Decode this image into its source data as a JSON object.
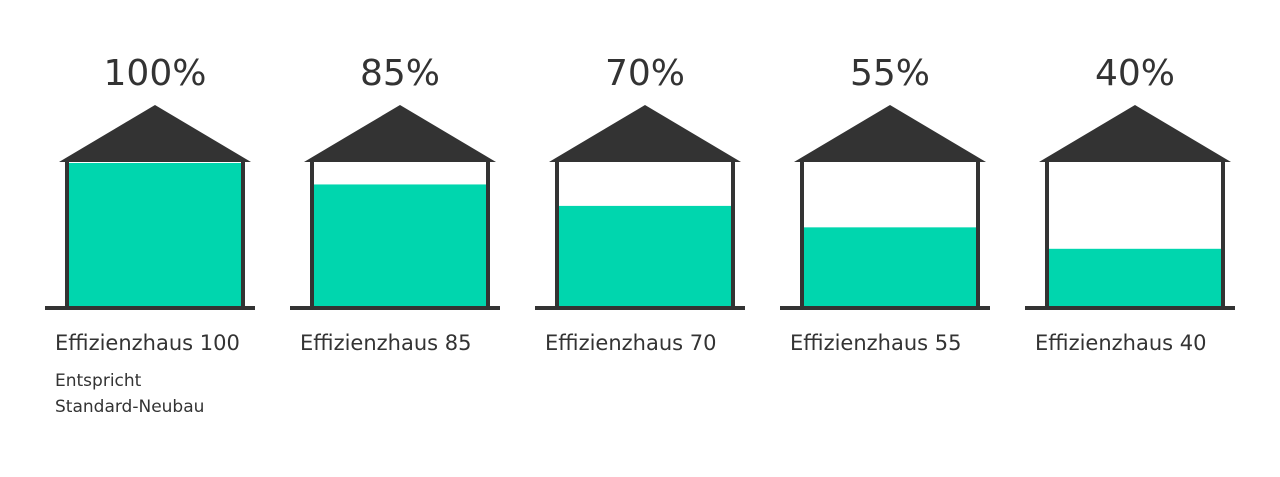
{
  "chart_data": {
    "type": "house",
    "categories": [
      "Effizienzhaus 100",
      "Effizienzhaus 85",
      "Effizienzhaus 70",
      "Effizienzhaus 55",
      "Effizienzhaus 40"
    ],
    "values": [
      100,
      85,
      70,
      55,
      40
    ],
    "value_labels": [
      "100%",
      "85%",
      "70%",
      "55%",
      "40%"
    ],
    "color": "#00d6ae",
    "ylim": [
      0,
      100
    ],
    "annotation": [
      "Entspricht",
      "Standard-Neubau"
    ]
  }
}
